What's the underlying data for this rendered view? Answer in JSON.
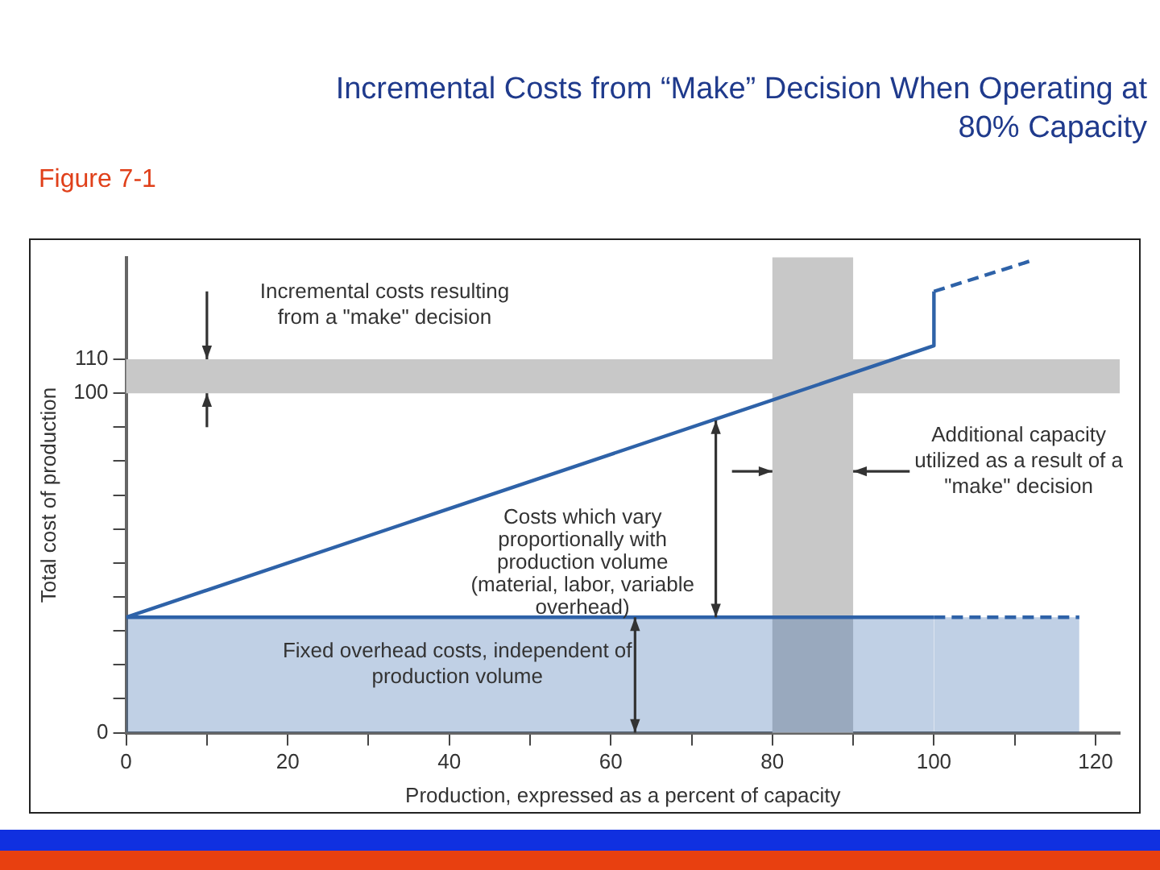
{
  "chart_data": {
    "type": "line",
    "title": "Incremental Costs from “Make” Decision When Operating at 80% Capacity",
    "xlabel": "Production, expressed as a percent of capacity",
    "ylabel": "Total cost of production",
    "annotations": [
      "Figure 7-1",
      {
        "text": "Incremental costs resulting from a \"make\" decision",
        "x": 10,
        "y": 110
      },
      {
        "text": "Costs which vary proportionally with production volume (material, labor, variable overhead)",
        "x": 73,
        "y": 92
      },
      {
        "text": "Fixed overhead costs, independent of production volume",
        "x": 63,
        "y": 34
      },
      {
        "text": "Additional capacity utilized as a result of a \"make\" decision",
        "x": 90,
        "y": 77
      }
    ],
    "series": [
      {
        "type": "area",
        "color": "#2e62a8",
        "x": [
          0,
          100
        ],
        "values": [
          34,
          34
        ],
        "line_style": "solid"
      },
      {
        "type": "area",
        "color": "#2e62a8",
        "x": [
          100,
          118
        ],
        "values": [
          34,
          34
        ],
        "line_style": "dashed"
      },
      {
        "type": "line",
        "color": "#2e62a8",
        "x": [
          0,
          100,
          100
        ],
        "values": [
          34,
          114,
          130
        ],
        "line_style": "solid"
      },
      {
        "type": "line",
        "color": "#2e62a8",
        "x": [
          100,
          112
        ],
        "values": [
          130,
          139
        ],
        "line_style": "dashed"
      }
    ],
    "bands": [
      {
        "axis": "y",
        "from": 100,
        "to": 110,
        "color": "#c8c8c8"
      },
      {
        "axis": "x",
        "from": 80,
        "to": 90,
        "color": "#c8c8c8"
      }
    ],
    "xlim": [
      0,
      123
    ],
    "xticks": [
      0,
      {
        "value": 10,
        "label": null
      },
      20,
      {
        "value": 30,
        "label": null
      },
      40,
      {
        "value": 50,
        "label": null
      },
      60,
      {
        "value": 70,
        "label": null
      },
      80,
      {
        "value": 90,
        "label": null
      },
      100,
      {
        "value": 110,
        "label": null
      },
      120
    ],
    "ylim": [
      0,
      140
    ],
    "yticks": [
      0,
      {
        "value": 10,
        "label": null
      },
      {
        "value": 20,
        "label": null
      },
      {
        "value": 30,
        "label": null
      },
      {
        "value": 40,
        "label": null
      },
      {
        "value": 50,
        "label": null
      },
      {
        "value": 60,
        "label": null
      },
      {
        "value": 70,
        "label": null
      },
      {
        "value": 80,
        "label": null
      },
      {
        "value": 90,
        "label": null
      },
      100,
      110
    ],
    "grid": false,
    "legend": false,
    "marker": "none"
  }
}
